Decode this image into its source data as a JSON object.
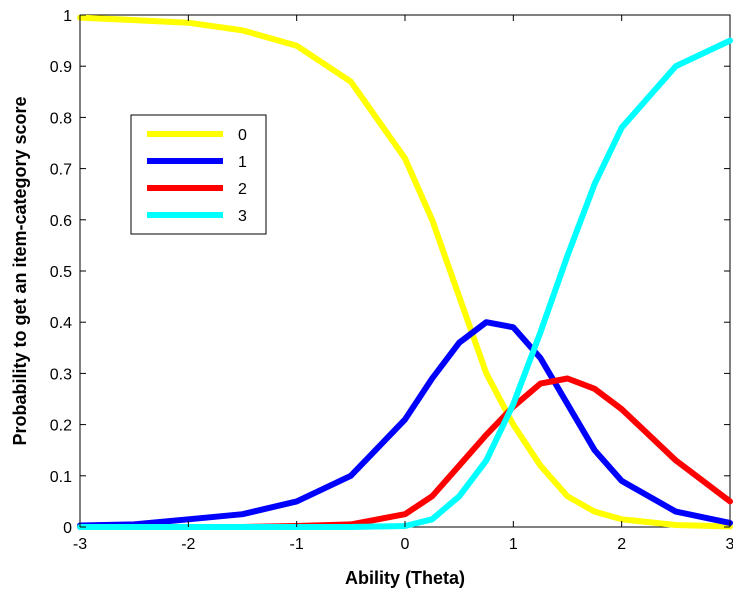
{
  "chart_data": {
    "type": "line",
    "title": "",
    "xlabel": "Ability (Theta)",
    "ylabel": "Probability to get an item-category score",
    "xlim": [
      -3,
      3
    ],
    "ylim": [
      0,
      1
    ],
    "x_ticks": [
      -3,
      -2,
      -1,
      0,
      1,
      2,
      3
    ],
    "y_ticks": [
      0,
      0.1,
      0.2,
      0.3,
      0.4,
      0.5,
      0.6,
      0.7,
      0.8,
      0.9,
      1
    ],
    "x_tick_labels": [
      "-3",
      "-2",
      "-1",
      "0",
      "1",
      "2",
      "3"
    ],
    "y_tick_labels": [
      "0",
      "0.1",
      "0.2",
      "0.3",
      "0.4",
      "0.5",
      "0.6",
      "0.7",
      "0.8",
      "0.9",
      "1"
    ],
    "grid": false,
    "legend_position": "upper-left",
    "x": [
      -3,
      -2.5,
      -2,
      -1.5,
      -1,
      -0.5,
      0,
      0.25,
      0.5,
      0.75,
      1,
      1.25,
      1.5,
      1.75,
      2,
      2.5,
      3
    ],
    "series": [
      {
        "name": "0",
        "color": "#ffff00",
        "values": [
          0.995,
          0.99,
          0.985,
          0.97,
          0.94,
          0.87,
          0.72,
          0.6,
          0.45,
          0.3,
          0.2,
          0.12,
          0.06,
          0.03,
          0.015,
          0.004,
          0.001
        ]
      },
      {
        "name": "1",
        "color": "#0000ff",
        "values": [
          0.003,
          0.005,
          0.015,
          0.025,
          0.05,
          0.1,
          0.21,
          0.29,
          0.36,
          0.4,
          0.39,
          0.33,
          0.24,
          0.15,
          0.09,
          0.03,
          0.008
        ]
      },
      {
        "name": "2",
        "color": "#ff0000",
        "values": [
          0.0,
          0.0,
          0.0,
          0.0,
          0.002,
          0.005,
          0.025,
          0.06,
          0.12,
          0.18,
          0.235,
          0.28,
          0.29,
          0.27,
          0.23,
          0.13,
          0.05
        ]
      },
      {
        "name": "3",
        "color": "#00ffff",
        "values": [
          0.0,
          0.0,
          0.0,
          0.0,
          0.0,
          0.0,
          0.002,
          0.015,
          0.06,
          0.13,
          0.24,
          0.38,
          0.53,
          0.67,
          0.78,
          0.9,
          0.95
        ]
      }
    ]
  }
}
